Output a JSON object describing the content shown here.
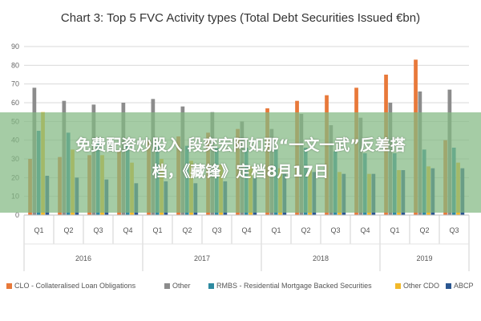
{
  "chart_data": {
    "type": "bar",
    "title": "Chart 3: Top 5 FVC Activity types (Total Debt Securities Issued €bn)",
    "categories": [
      "Q1",
      "Q2",
      "Q3",
      "Q4",
      "Q1",
      "Q2",
      "Q3",
      "Q4",
      "Q1",
      "Q2",
      "Q3",
      "Q4",
      "Q1",
      "Q2",
      "Q3"
    ],
    "year_groups": [
      {
        "label": "2016",
        "count": 4
      },
      {
        "label": "2017",
        "count": 4
      },
      {
        "label": "2018",
        "count": 4
      },
      {
        "label": "2019",
        "count": 3
      }
    ],
    "ylim": [
      0,
      90
    ],
    "yticks": [
      "0",
      "10",
      "20",
      "30",
      "40",
      "50",
      "60",
      "70",
      "80",
      "90"
    ],
    "grid": true,
    "legend_position": "bottom",
    "series": [
      {
        "name": "CLO - Collateralised Loan Obligations",
        "color": "#e8793a",
        "values": [
          30,
          31,
          32,
          34,
          40,
          42,
          44,
          46,
          57,
          61,
          64,
          68,
          75,
          83,
          40
        ]
      },
      {
        "name": "Other",
        "color": "#8c8c8c",
        "values": [
          68,
          61,
          59,
          60,
          62,
          58,
          55,
          50,
          46,
          54,
          48,
          52,
          60,
          66,
          67
        ]
      },
      {
        "name": "RMBS - Residential Mortgage Backed Securities",
        "color": "#2e8aa0",
        "values": [
          45,
          44,
          40,
          38,
          37,
          37,
          36,
          36,
          35,
          36,
          34,
          33,
          33,
          35,
          36
        ]
      },
      {
        "name": "Other CDO",
        "color": "#f2b92a",
        "values": [
          55,
          35,
          32,
          28,
          30,
          29,
          27,
          26,
          25,
          24,
          23,
          22,
          24,
          26,
          28
        ]
      },
      {
        "name": "ABCP",
        "color": "#2a5690",
        "values": [
          21,
          20,
          19,
          17,
          18,
          17,
          18,
          20,
          22,
          23,
          22,
          22,
          24,
          25,
          25
        ]
      }
    ]
  },
  "overlay": {
    "line1": "免费配资炒股入 段奕宏阿如那“一文一武”反差搭",
    "line2": "档，《藏锋》定档8月17日"
  }
}
